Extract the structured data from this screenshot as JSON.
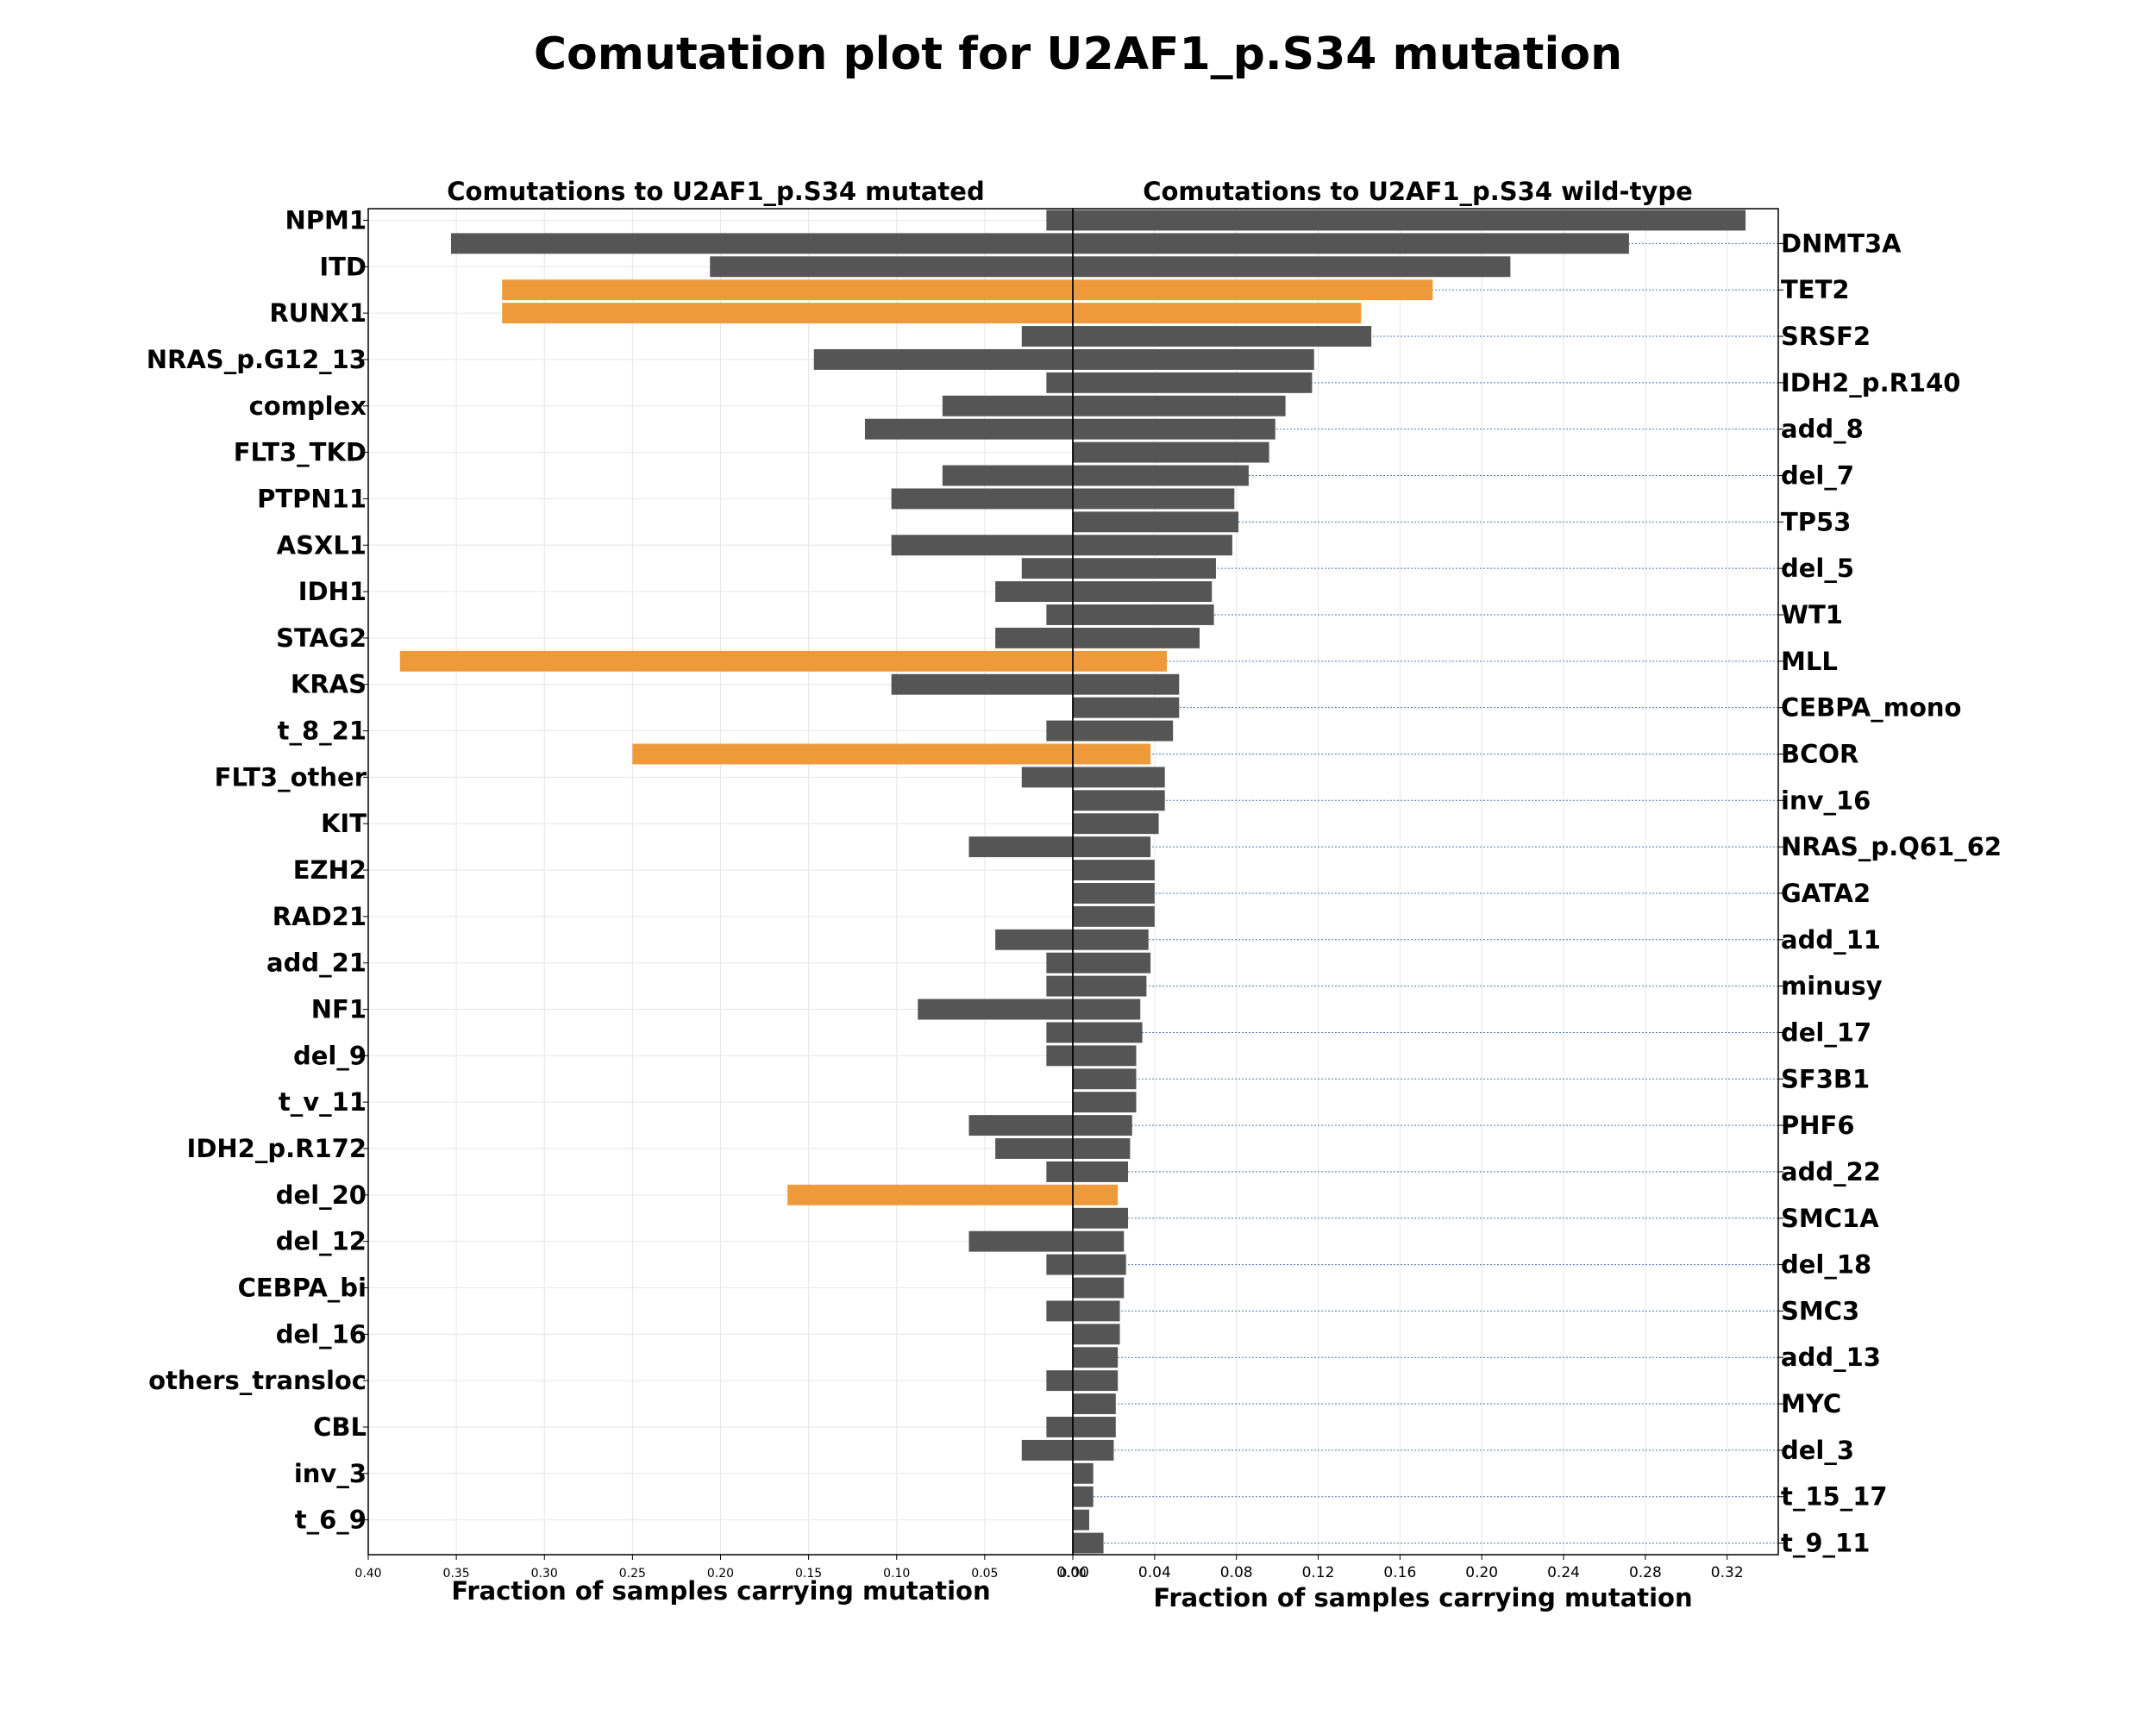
{
  "chart_data": {
    "type": "bar",
    "orientation": "horizontal-butterfly",
    "title": "Comutation plot for U2AF1_p.S34 mutation",
    "colors": {
      "default": "#555555",
      "highlight": "#ee9a3a",
      "guide": "#4a78b8",
      "grid": "#e6e6e6"
    },
    "categories": [
      "NPM1",
      "DNMT3A",
      "ITD",
      "TET2",
      "RUNX1",
      "SRSF2",
      "NRAS_p.G12_13",
      "IDH2_p.R140",
      "complex",
      "add_8",
      "FLT3_TKD",
      "del_7",
      "PTPN11",
      "TP53",
      "ASXL1",
      "del_5",
      "IDH1",
      "WT1",
      "STAG2",
      "MLL",
      "KRAS",
      "CEBPA_mono",
      "t_8_21",
      "BCOR",
      "FLT3_other",
      "inv_16",
      "KIT",
      "NRAS_p.Q61_62",
      "EZH2",
      "GATA2",
      "RAD21",
      "add_11",
      "add_21",
      "minusy",
      "NF1",
      "del_17",
      "del_9",
      "SF3B1",
      "t_v_11",
      "PHF6",
      "IDH2_p.R172",
      "add_22",
      "del_20",
      "SMC1A",
      "del_12",
      "del_18",
      "CEBPA_bi",
      "SMC3",
      "del_16",
      "add_13",
      "others_transloc",
      "MYC",
      "CBL",
      "del_3",
      "inv_3",
      "t_15_17",
      "t_6_9",
      "t_9_11"
    ],
    "left_tick_labels": [
      "NPM1",
      "ITD",
      "RUNX1",
      "NRAS_p.G12_13",
      "complex",
      "FLT3_TKD",
      "PTPN11",
      "ASXL1",
      "IDH1",
      "STAG2",
      "KRAS",
      "t_8_21",
      "FLT3_other",
      "KIT",
      "EZH2",
      "RAD21",
      "add_21",
      "NF1",
      "del_9",
      "t_v_11",
      "IDH2_p.R172",
      "del_20",
      "del_12",
      "CEBPA_bi",
      "del_16",
      "others_transloc",
      "CBL",
      "inv_3",
      "t_6_9"
    ],
    "right_tick_labels": [
      "DNMT3A",
      "TET2",
      "SRSF2",
      "IDH2_p.R140",
      "add_8",
      "del_7",
      "TP53",
      "del_5",
      "WT1",
      "MLL",
      "CEBPA_mono",
      "BCOR",
      "inv_16",
      "NRAS_p.Q61_62",
      "GATA2",
      "add_11",
      "minusy",
      "del_17",
      "SF3B1",
      "PHF6",
      "add_22",
      "SMC1A",
      "del_18",
      "SMC3",
      "add_13",
      "MYC",
      "del_3",
      "t_15_17",
      "t_9_11"
    ],
    "highlighted": [
      "TET2",
      "RUNX1",
      "MLL",
      "BCOR",
      "del_20"
    ],
    "series": [
      {
        "name": "Comutations to U2AF1_p.S34 mutated",
        "xlabel": "Fraction of samples carrying mutation",
        "xlim": [
          0.4,
          0
        ],
        "ticks": [
          "0.40",
          "0.35",
          "0.30",
          "0.25",
          "0.20",
          "0.15",
          "0.10",
          "0.05",
          "0.00"
        ],
        "values": [
          0.015,
          0.353,
          0.206,
          0.324,
          0.324,
          0.029,
          0.147,
          0.015,
          0.074,
          0.118,
          0,
          0.074,
          0.103,
          0,
          0.103,
          0.029,
          0.044,
          0.015,
          0.044,
          0.382,
          0.103,
          0,
          0.015,
          0.25,
          0.029,
          0,
          0,
          0.059,
          0,
          0,
          0,
          0.044,
          0.015,
          0.015,
          0.088,
          0.015,
          0.015,
          0,
          0,
          0.059,
          0.044,
          0.015,
          0.162,
          0,
          0.059,
          0.015,
          0,
          0.015,
          0,
          0,
          0.015,
          0,
          0.015,
          0.029,
          0,
          0,
          0,
          0
        ]
      },
      {
        "name": "Comutations to U2AF1_p.S34 wild-type",
        "xlabel": "Fraction of samples carrying mutation",
        "xlim": [
          0,
          0.345
        ],
        "ticks": [
          "0.00",
          "0.04",
          "0.08",
          "0.12",
          "0.16",
          "0.20",
          "0.24",
          "0.28",
          "0.32"
        ],
        "values": [
          0.329,
          0.272,
          0.214,
          0.176,
          0.141,
          0.146,
          0.118,
          0.117,
          0.104,
          0.099,
          0.096,
          0.086,
          0.079,
          0.081,
          0.078,
          0.07,
          0.068,
          0.069,
          0.062,
          0.046,
          0.052,
          0.052,
          0.049,
          0.038,
          0.045,
          0.045,
          0.042,
          0.038,
          0.04,
          0.04,
          0.04,
          0.037,
          0.038,
          0.036,
          0.033,
          0.034,
          0.031,
          0.031,
          0.031,
          0.029,
          0.028,
          0.027,
          0.022,
          0.027,
          0.025,
          0.026,
          0.025,
          0.023,
          0.023,
          0.022,
          0.022,
          0.021,
          0.021,
          0.02,
          0.01,
          0.01,
          0.008,
          0.015
        ]
      }
    ]
  }
}
